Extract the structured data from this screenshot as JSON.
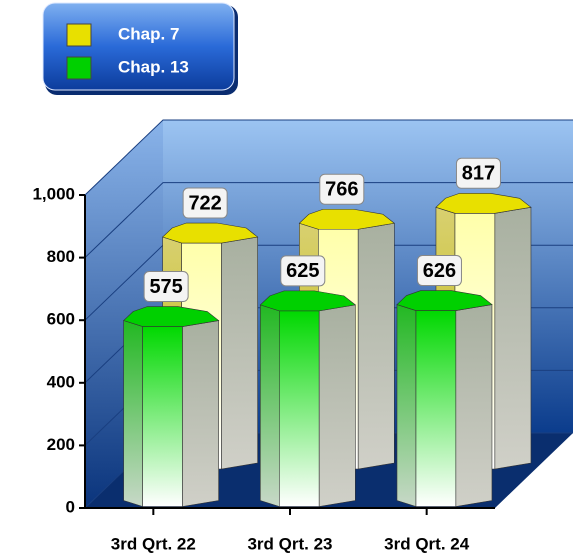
{
  "chart_data": {
    "type": "bar3d",
    "categories": [
      "3rd Qrt. 22",
      "3rd Qrt. 23",
      "3rd Qrt. 24"
    ],
    "series": [
      {
        "name": "Chap. 7",
        "color": "#e8e000",
        "values": [
          722,
          766,
          817
        ]
      },
      {
        "name": "Chap. 13",
        "color": "#00d000",
        "values": [
          575,
          625,
          626
        ]
      }
    ],
    "ylim": [
      0,
      1000
    ],
    "yticks": [
      0,
      200,
      400,
      600,
      800,
      {
        "value": 1000,
        "label": "1,000"
      }
    ],
    "grid": true,
    "legend": "top-left"
  }
}
